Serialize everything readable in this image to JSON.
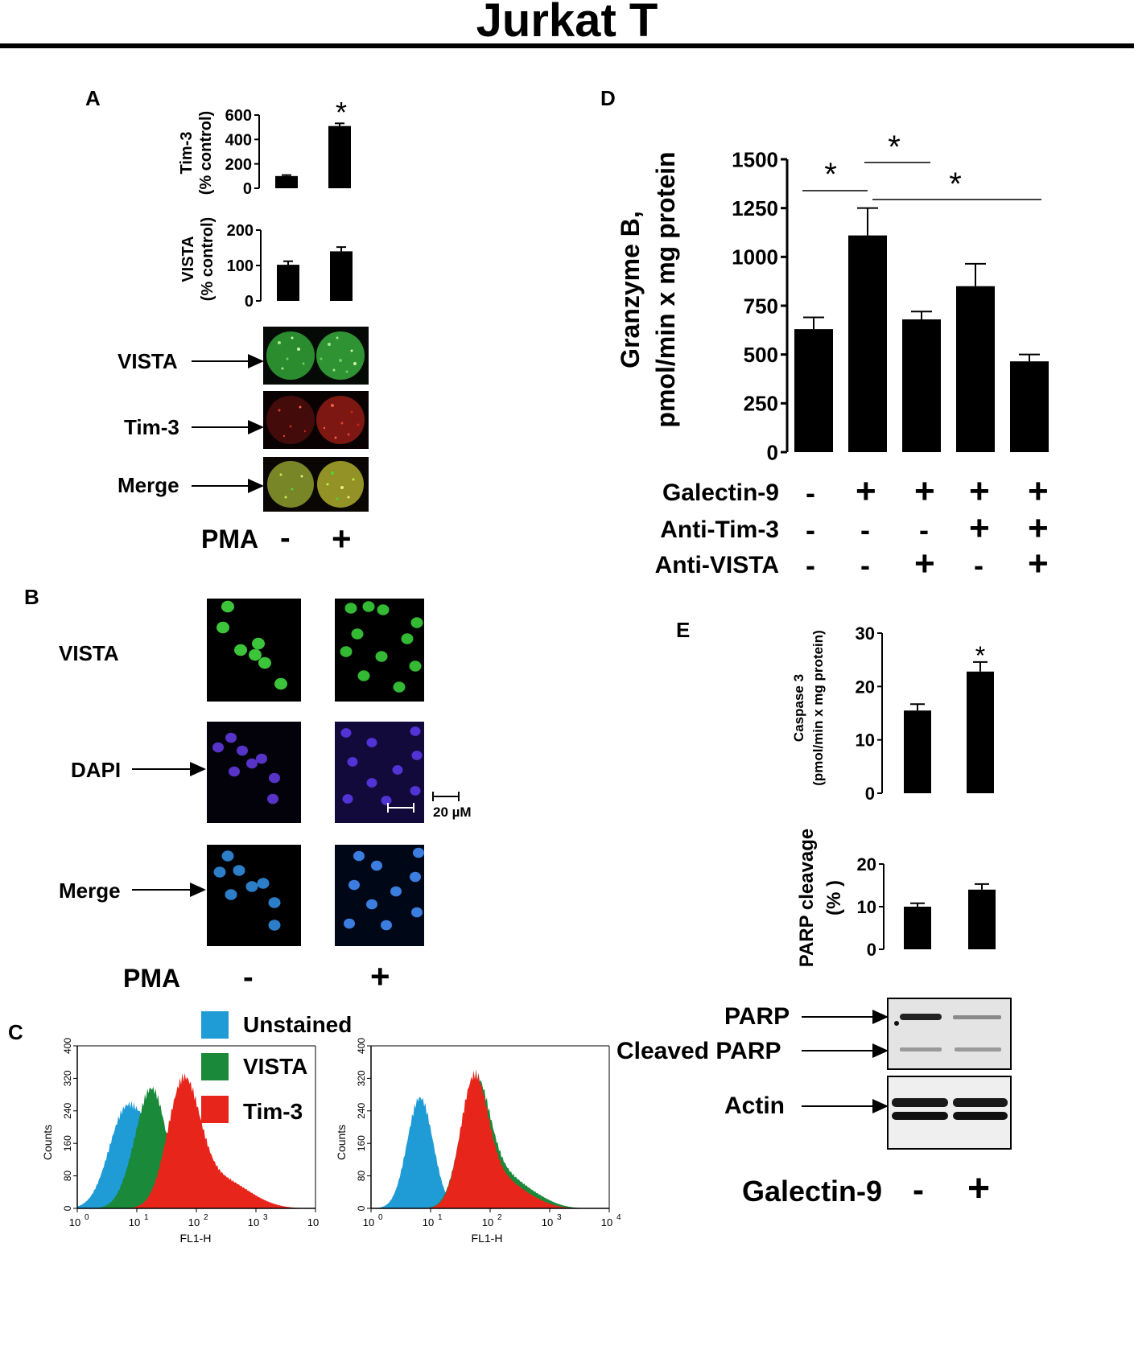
{
  "title": "Jurkat T",
  "panelA": {
    "letter": "A",
    "chart_tim3": {
      "type": "bar",
      "ylabel_line1": "Tim-3",
      "ylabel_line2": "(% control)",
      "ticks": [
        "0",
        "200",
        "400",
        "600"
      ],
      "ylim": [
        0,
        600
      ],
      "values": [
        100,
        510
      ],
      "errors": [
        8,
        22
      ],
      "star": "*"
    },
    "chart_vista": {
      "type": "bar",
      "ylabel_line1": "VISTA",
      "ylabel_line2": "(% control)",
      "ticks": [
        "0",
        "100",
        "200"
      ],
      "ylim": [
        0,
        200
      ],
      "values": [
        102,
        140
      ],
      "errors": [
        10,
        12
      ]
    },
    "rows": [
      "VISTA",
      "Tim-3",
      "Merge"
    ],
    "pma_label": "PMA",
    "pma_values": [
      "-",
      "+"
    ]
  },
  "panelB": {
    "letter": "B",
    "rows": [
      "VISTA",
      "DAPI",
      "Merge"
    ],
    "scale_bar": "20 µM",
    "pma_label": "PMA",
    "pma_values": [
      "-",
      "+"
    ]
  },
  "panelC": {
    "letter": "C",
    "legend": [
      {
        "label": "Unstained",
        "color": "#1f9bd6"
      },
      {
        "label": "VISTA",
        "color": "#1a8a3a"
      },
      {
        "label": "Tim-3",
        "color": "#e8251b"
      }
    ],
    "ylabel": "Counts",
    "xlabel": "FL1-H",
    "yticks": [
      "0",
      "80",
      "160",
      "240",
      "320",
      "400"
    ],
    "xticks_left": [
      "10",
      "10",
      "10",
      "10",
      "10"
    ],
    "xticks_right": [
      "10",
      "10",
      "10",
      "10",
      "10"
    ],
    "xexp_left": [
      "0",
      "1",
      "2",
      "3",
      ""
    ],
    "xexp_right": [
      "0",
      "1",
      "2",
      "3",
      "4"
    ]
  },
  "panelD": {
    "letter": "D",
    "chart_data": {
      "type": "bar",
      "ylabel_line1": "Granzyme B,",
      "ylabel_line2": "pmol/min x mg protein",
      "ticks": [
        "0",
        "250",
        "500",
        "750",
        "1000",
        "1250",
        "1500"
      ],
      "ylim": [
        0,
        1500
      ],
      "values": [
        630,
        1110,
        680,
        850,
        465
      ],
      "errors": [
        60,
        140,
        40,
        115,
        35
      ],
      "star": "*"
    },
    "treatments": [
      {
        "label": "Galectin-9",
        "values": [
          "-",
          "+",
          "+",
          "+",
          "+"
        ]
      },
      {
        "label": "Anti-Tim-3",
        "values": [
          "-",
          "-",
          "-",
          "+",
          "+"
        ]
      },
      {
        "label": "Anti-VISTA",
        "values": [
          "-",
          "-",
          "+",
          "-",
          "+"
        ]
      }
    ]
  },
  "panelE": {
    "letter": "E",
    "chart_caspase": {
      "type": "bar",
      "ylabel_line1": "Caspase 3",
      "ylabel_line2": "(pmol/min x mg protein)",
      "ticks": [
        "0",
        "10",
        "20",
        "30"
      ],
      "ylim": [
        0,
        30
      ],
      "values": [
        15.5,
        22.8
      ],
      "errors": [
        1.2,
        1.8
      ],
      "star": "*"
    },
    "chart_parp": {
      "type": "bar",
      "ylabel_line1": "PARP cleavage",
      "ylabel_line2": "(% )",
      "ticks": [
        "0",
        "10",
        "20"
      ],
      "ylim": [
        0,
        20
      ],
      "values": [
        10,
        14
      ],
      "errors": [
        0.8,
        1.3
      ]
    },
    "blot_labels": [
      "PARP",
      "Cleaved PARP",
      "Actin"
    ],
    "galectin_label": "Galectin-9",
    "galectin_values": [
      "-",
      "+"
    ]
  }
}
